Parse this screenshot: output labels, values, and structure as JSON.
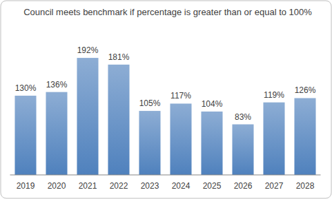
{
  "chart_data": {
    "type": "bar",
    "title": "Council meets benchmark if percentage is greater than or equal to 100%",
    "categories": [
      "2019",
      "2020",
      "2021",
      "2022",
      "2023",
      "2024",
      "2025",
      "2026",
      "2027",
      "2028"
    ],
    "values": [
      130,
      136,
      192,
      181,
      105,
      117,
      104,
      83,
      119,
      126
    ],
    "value_labels": [
      "130%",
      "136%",
      "192%",
      "181%",
      "105%",
      "117%",
      "104%",
      "83%",
      "119%",
      "126%"
    ],
    "color": "#4f81bd",
    "ylim": [
      0,
      200
    ],
    "grid": false,
    "data_labels": true,
    "tick_labels": "x"
  }
}
